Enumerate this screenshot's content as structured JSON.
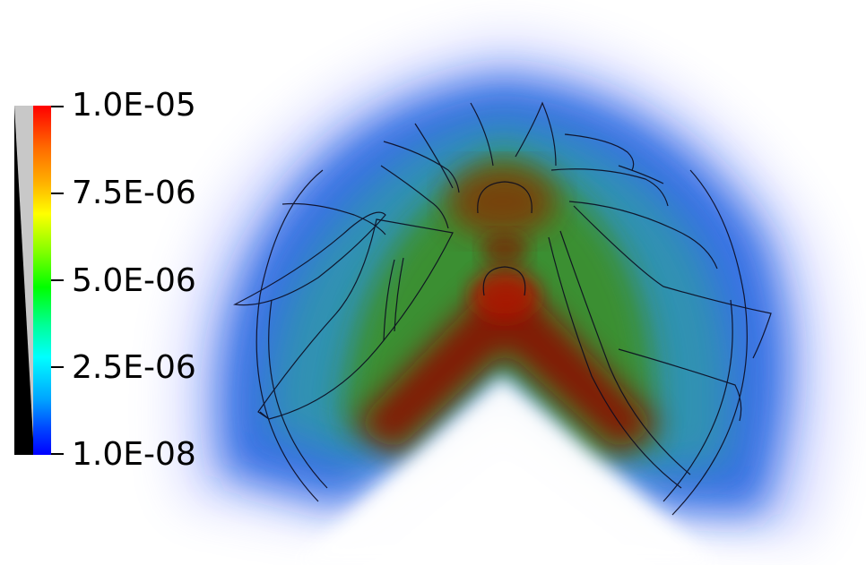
{
  "scalar_bar": {
    "labels": [
      "1.0E-05",
      "7.5E-06",
      "5.0E-06",
      "2.5E-06",
      "1.0E-08"
    ]
  },
  "colors": {
    "max": "#ff0000",
    "high": "#ffff00",
    "mid": "#00ff00",
    "low": "#00ffff",
    "min": "#0000ff",
    "hot_core": "#8a0a00",
    "blade_outline": "#0b0b20"
  }
}
